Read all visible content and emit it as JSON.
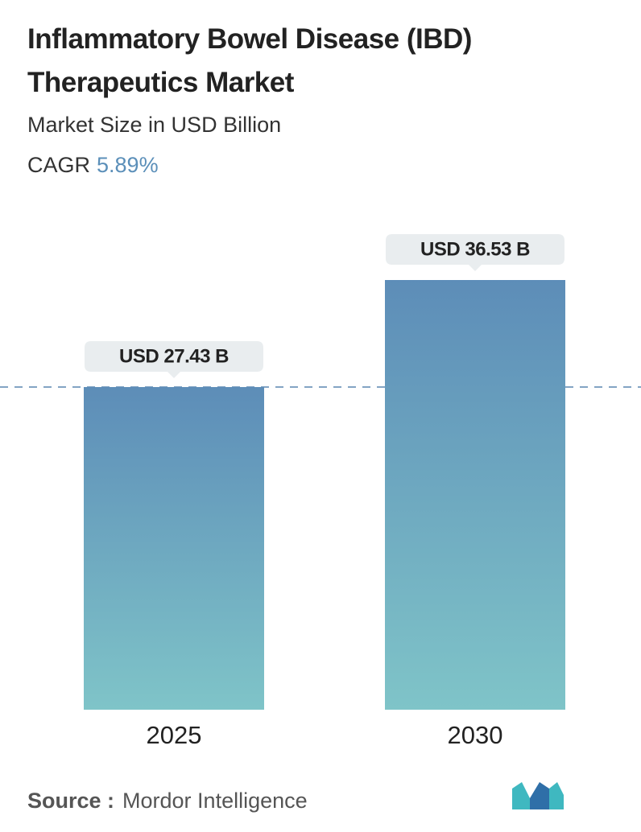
{
  "chart_data": {
    "type": "bar",
    "title": "Inflammatory Bowel Disease (IBD) Therapeutics Market",
    "subtitle": "Market Size in USD Billion",
    "cagr_label": "CAGR",
    "cagr": "5.89%",
    "categories": [
      "2025",
      "2030"
    ],
    "values": [
      27.43,
      36.53
    ],
    "value_labels": [
      "USD 27.43 B",
      "USD 36.53 B"
    ],
    "gradient": [
      "#5d8db8",
      "#7fc4c8"
    ],
    "source_label": "Source :",
    "source": "Mordor Intelligence"
  }
}
